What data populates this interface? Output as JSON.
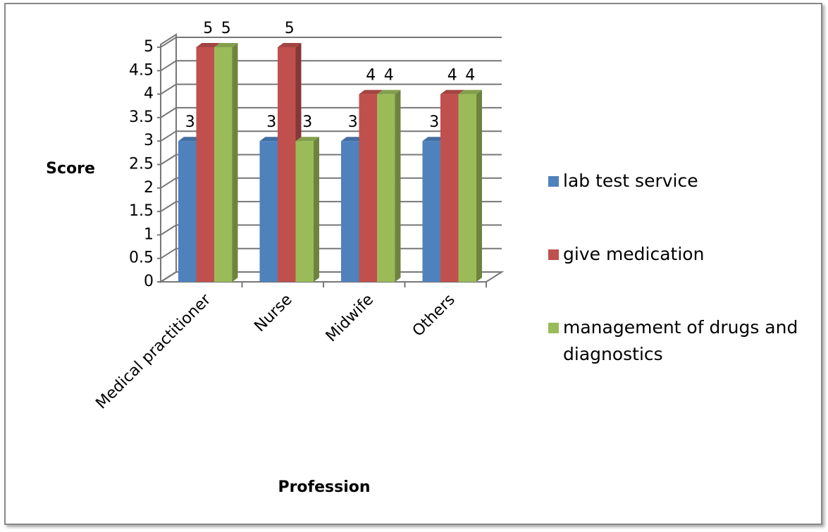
{
  "chart_data": {
    "type": "bar3d",
    "x_label": "Profession",
    "y_label": "Score",
    "categories": [
      "Medical practitioner",
      "Nurse",
      "Midwife",
      "Others"
    ],
    "series": [
      {
        "name": "lab test service",
        "color": "#4f81bd",
        "values": [
          3,
          3,
          3,
          3
        ]
      },
      {
        "name": "give medication",
        "color": "#c0504d",
        "values": [
          5,
          5,
          4,
          4
        ]
      },
      {
        "name": "management of drugs and diagnostics",
        "color": "#9bbb59",
        "values": [
          5,
          3,
          4,
          4
        ]
      }
    ],
    "ylim": [
      0,
      5
    ],
    "yticks": [
      0,
      0.5,
      1,
      1.5,
      2,
      2.5,
      3,
      3.5,
      4,
      4.5,
      5
    ],
    "grid": true,
    "legend": "right"
  }
}
